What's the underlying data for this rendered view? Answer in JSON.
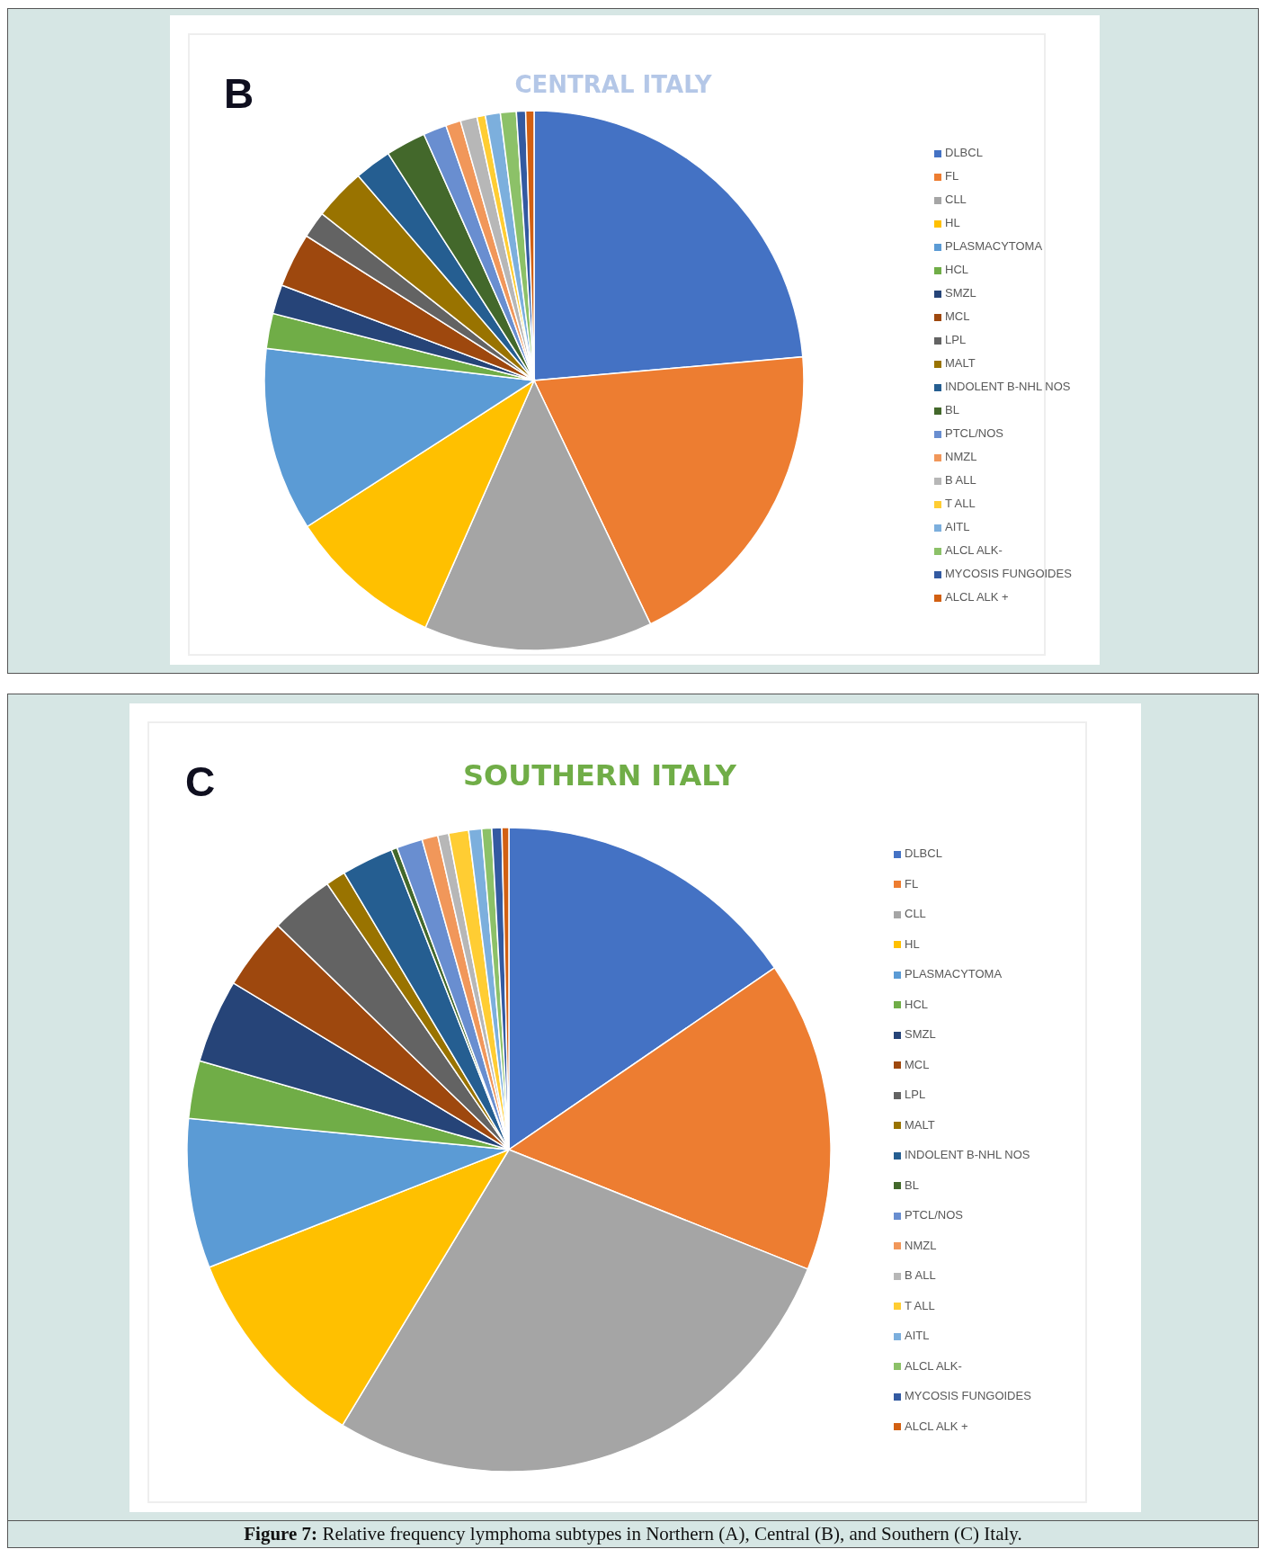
{
  "chart_data": [
    {
      "type": "pie",
      "title": "CENTRAL ITALY",
      "annotations": [
        "B"
      ],
      "legend": "right",
      "categories": [
        "DLBCL",
        "FL",
        "CLL",
        "HL",
        "PLASMACYTOMA",
        "HCL",
        "SMZL",
        "MCL",
        "LPL",
        "MALT",
        "INDOLENT B-NHL NOS",
        "BL",
        "PTCL/NOS",
        "NMZL",
        "B ALL",
        "T ALL",
        "AITL",
        "ALCL ALK-",
        "MYCOSIS FUNGOIDES",
        "ALCL ALK +"
      ],
      "values": [
        23.6,
        19.3,
        13.7,
        9.3,
        11.0,
        2.1,
        1.75,
        3.25,
        1.6,
        3.1,
        2.2,
        2.4,
        1.4,
        0.9,
        1.0,
        0.5,
        0.9,
        0.95,
        0.55,
        0.5
      ],
      "colors": [
        "#4472c4",
        "#ed7d31",
        "#a5a5a5",
        "#ffc000",
        "#5b9bd5",
        "#70ad47",
        "#264478",
        "#9e480e",
        "#636363",
        "#997300",
        "#255e91",
        "#43682b",
        "#698ed0",
        "#f1975a",
        "#b7b7b7",
        "#ffcd33",
        "#7cafdd",
        "#8cc168",
        "#335aa1",
        "#d26012"
      ]
    },
    {
      "type": "pie",
      "title": "SOUTHERN ITALY",
      "annotations": [
        "C",
        "Figure 7: Relative frequency lymphoma subtypes in Northern (A), Central (B), and Southern (C) Italy."
      ],
      "legend": "right",
      "categories": [
        "DLBCL",
        "FL",
        "CLL",
        "HL",
        "PLASMACYTOMA",
        "HCL",
        "SMZL",
        "MCL",
        "LPL",
        "MALT",
        "INDOLENT B-NHL NOS",
        "BL",
        "PTCL/NOS",
        "NMZL",
        "B ALL",
        "T ALL",
        "AITL",
        "ALCL ALK-",
        "MYCOSIS FUNGOIDES",
        "ALCL ALK +"
      ],
      "values": [
        15.45,
        15.6,
        27.6,
        10.4,
        7.5,
        2.9,
        4.2,
        3.6,
        3.2,
        1.0,
        2.6,
        0.3,
        1.3,
        0.8,
        0.55,
        1.0,
        0.65,
        0.5,
        0.5,
        0.35
      ],
      "colors": [
        "#4472c4",
        "#ed7d31",
        "#a5a5a5",
        "#ffc000",
        "#5b9bd5",
        "#70ad47",
        "#264478",
        "#9e480e",
        "#636363",
        "#997300",
        "#255e91",
        "#43682b",
        "#698ed0",
        "#f1975a",
        "#b7b7b7",
        "#ffcd33",
        "#7cafdd",
        "#8cc168",
        "#335aa1",
        "#d26012"
      ]
    }
  ]
}
